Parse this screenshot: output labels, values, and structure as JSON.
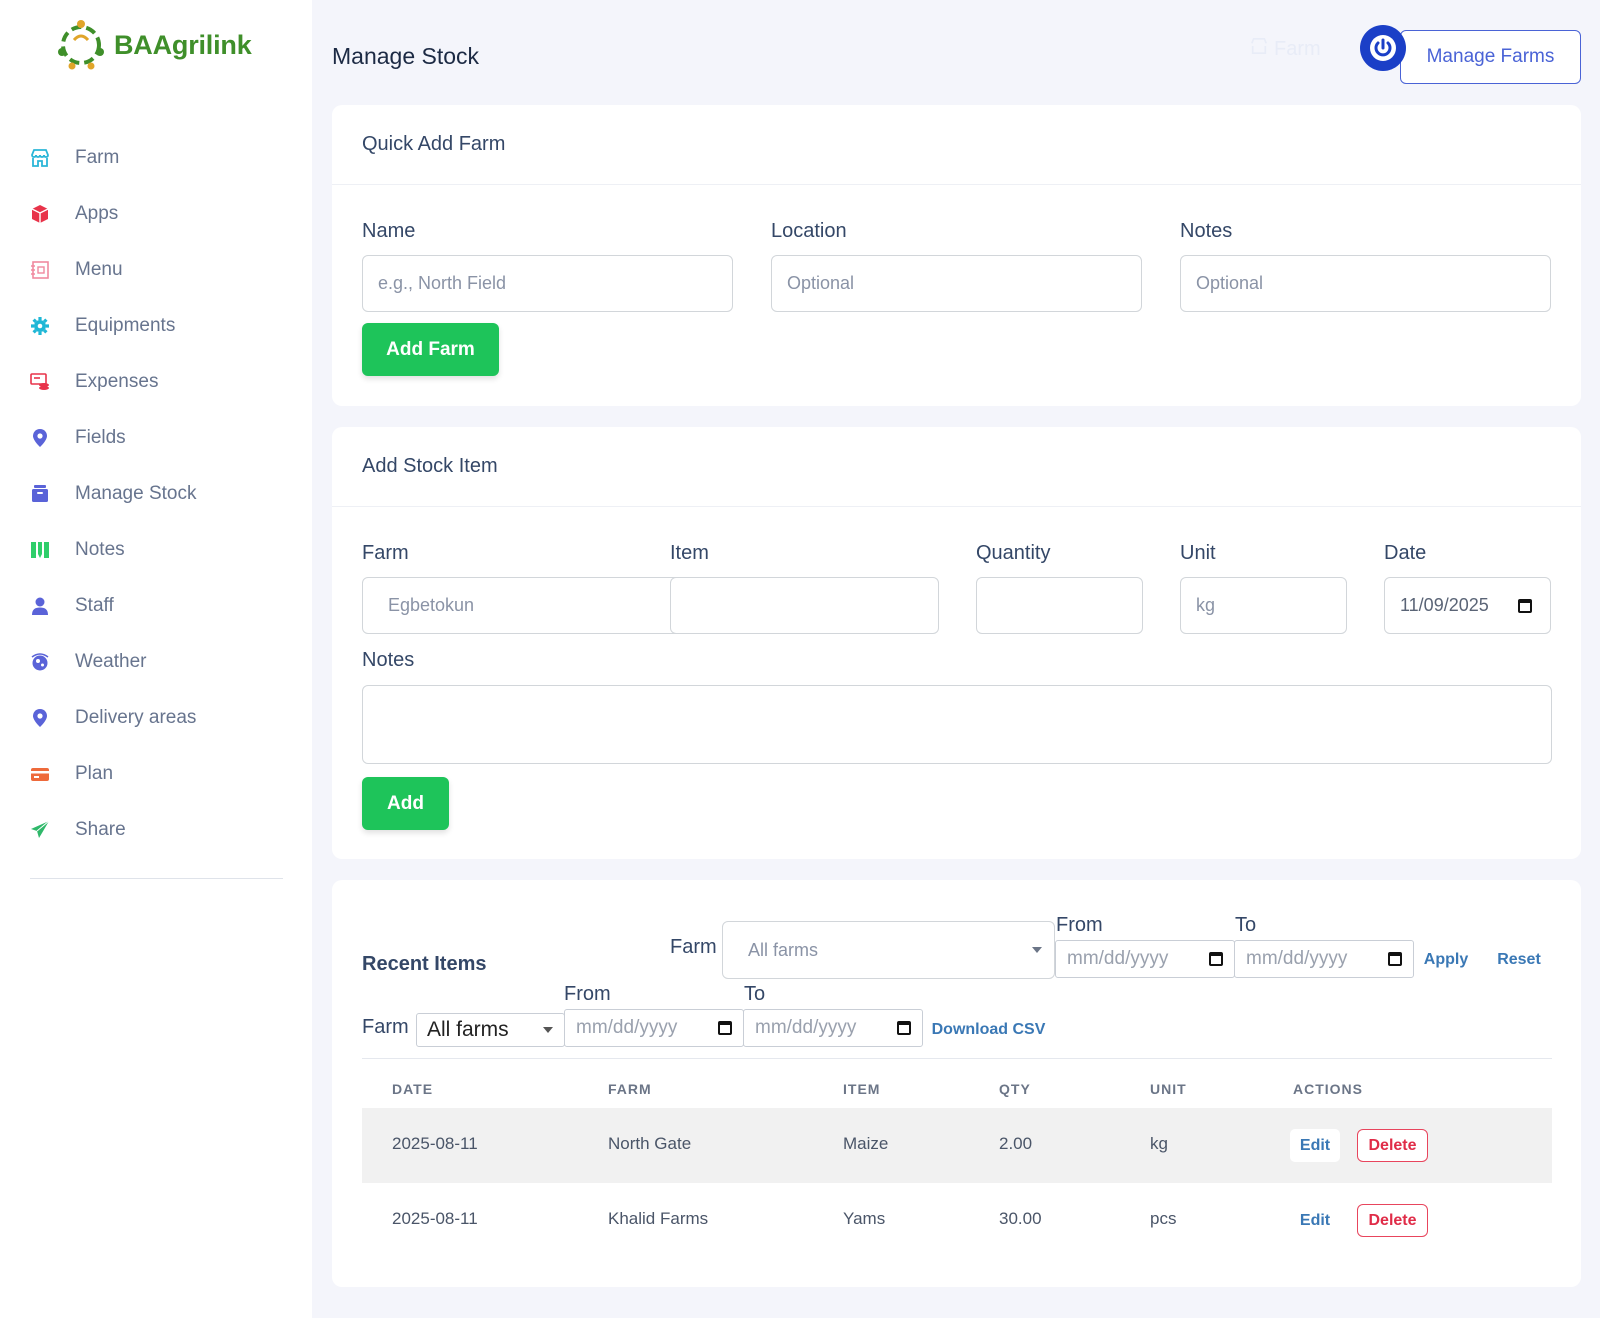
{
  "app": {
    "logo_text": "BAAgrilink"
  },
  "sidebar": {
    "items": [
      {
        "label": "Farm",
        "icon": "shop-icon",
        "color": "#2bb6d8"
      },
      {
        "label": "Apps",
        "icon": "cube-icon",
        "color": "#e8334a"
      },
      {
        "label": "Menu",
        "icon": "menu-book-icon",
        "color": "#f08aa0"
      },
      {
        "label": "Equipments",
        "icon": "gear-icon",
        "color": "#1fb7d6"
      },
      {
        "label": "Expenses",
        "icon": "money-icon",
        "color": "#e8334a"
      },
      {
        "label": "Fields",
        "icon": "location-pin-icon",
        "color": "#5a63d8"
      },
      {
        "label": "Manage Stock",
        "icon": "archive-box-icon",
        "color": "#5a63d8"
      },
      {
        "label": "Notes",
        "icon": "notes-icon",
        "color": "#2fce6a"
      },
      {
        "label": "Staff",
        "icon": "user-icon",
        "color": "#5a63d8"
      },
      {
        "label": "Weather",
        "icon": "weather-globe-icon",
        "color": "#5a63d8"
      },
      {
        "label": "Delivery areas",
        "icon": "location-pin-icon",
        "color": "#5a63d8"
      },
      {
        "label": "Plan",
        "icon": "credit-card-icon",
        "color": "#ee6a3b"
      },
      {
        "label": "Share",
        "icon": "paper-plane-icon",
        "color": "#2fb86a"
      }
    ]
  },
  "header": {
    "title": "Manage Stock",
    "ghost_link": "Farm",
    "manage_farms_label": "Manage Farms"
  },
  "quick_add": {
    "title": "Quick Add Farm",
    "name_label": "Name",
    "name_placeholder": "e.g., North Field",
    "location_label": "Location",
    "location_placeholder": "Optional",
    "notes_label": "Notes",
    "notes_placeholder": "Optional",
    "button": "Add Farm"
  },
  "add_stock": {
    "title": "Add Stock Item",
    "farm_label": "Farm",
    "farm_value": "Egbetokun",
    "item_label": "Item",
    "item_value": "",
    "quantity_label": "Quantity",
    "quantity_value": "",
    "unit_label": "Unit",
    "unit_value": "kg",
    "date_label": "Date",
    "date_value": "11/09/2025",
    "notes_label": "Notes",
    "notes_value": "",
    "button": "Add"
  },
  "recent": {
    "title": "Recent Items",
    "filter1": {
      "farm_label": "Farm",
      "farm_value": "All farms",
      "from_label": "From",
      "from_placeholder": "mm/dd/yyyy",
      "to_label": "To",
      "to_placeholder": "mm/dd/yyyy",
      "apply": "Apply",
      "reset": "Reset"
    },
    "filter2": {
      "farm_label": "Farm",
      "farm_value": "All farms",
      "from_label": "From",
      "from_placeholder": "mm/dd/yyyy",
      "to_label": "To",
      "to_placeholder": "mm/dd/yyyy",
      "download": "Download CSV"
    },
    "columns": [
      "DATE",
      "FARM",
      "ITEM",
      "QTY",
      "UNIT",
      "ACTIONS"
    ],
    "rows": [
      {
        "date": "2025-08-11",
        "farm": "North Gate",
        "item": "Maize",
        "qty": "2.00",
        "unit": "kg"
      },
      {
        "date": "2025-08-11",
        "farm": "Khalid Farms",
        "item": "Yams",
        "qty": "30.00",
        "unit": "pcs"
      }
    ],
    "edit_label": "Edit",
    "delete_label": "Delete"
  }
}
